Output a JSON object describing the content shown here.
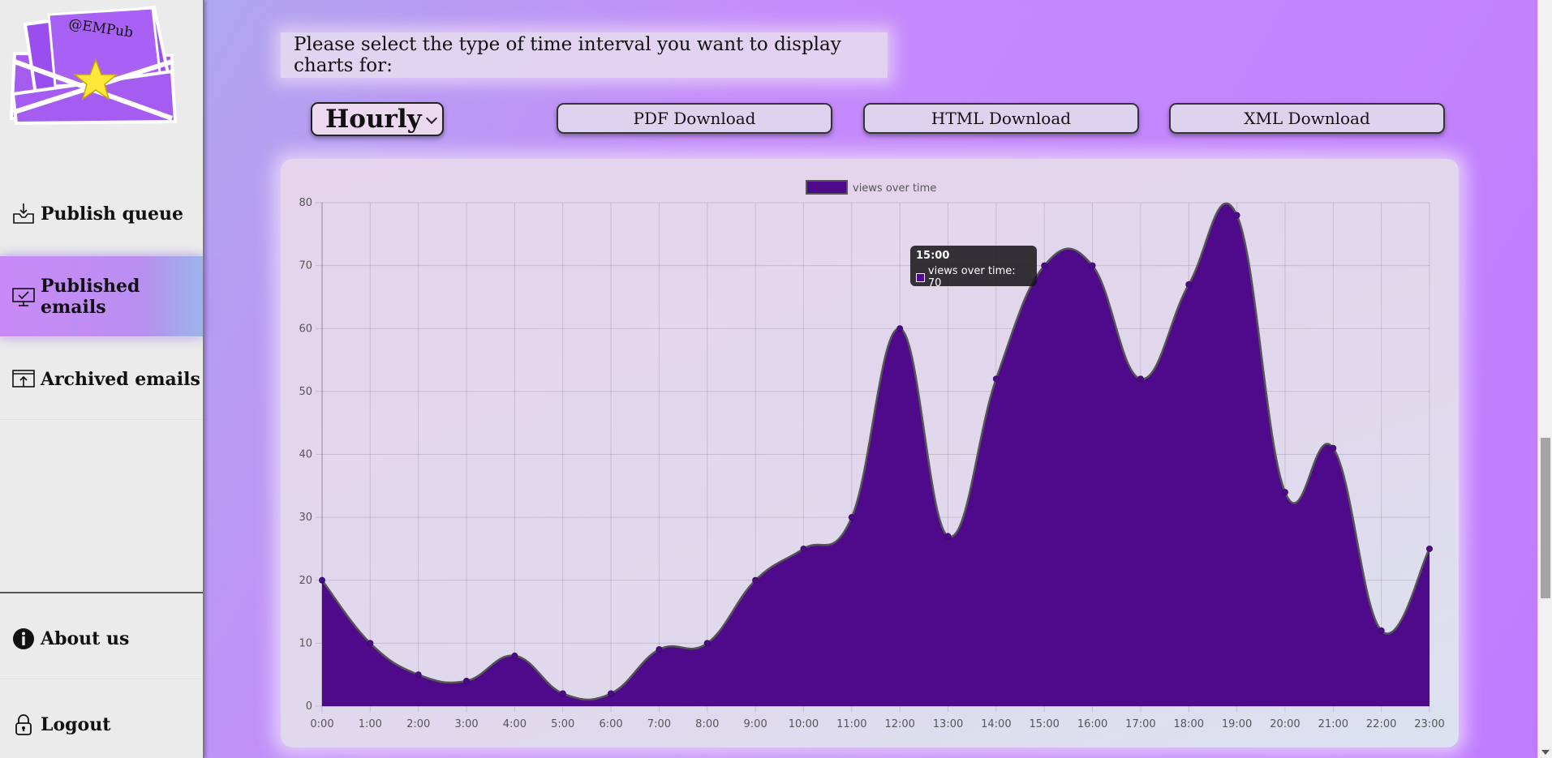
{
  "sidebar": {
    "logo_text": "@EMPub",
    "nav": [
      {
        "label": "Publish queue",
        "icon": "inbox-download-icon"
      },
      {
        "label": "Published emails",
        "icon": "monitor-check-icon",
        "active": true
      },
      {
        "label": "Archived emails",
        "icon": "window-upload-icon"
      }
    ],
    "bottom": [
      {
        "label": "About us",
        "icon": "info-icon"
      },
      {
        "label": "Logout",
        "icon": "lock-icon"
      }
    ]
  },
  "main": {
    "prompt": "Please select the type of time interval you want to display charts for:",
    "interval_select": {
      "value": "Hourly"
    },
    "buttons": {
      "pdf": "PDF Download",
      "html": "HTML Download",
      "xml": "XML Download"
    }
  },
  "colors": {
    "area_fill": "#4e0a8a",
    "line": "#555555",
    "active_nav": "#c98af8"
  },
  "tooltip": {
    "title": "15:00",
    "body": "views over time: 70"
  },
  "chart_data": {
    "type": "area",
    "legend": {
      "label": "views over time",
      "position": "top"
    },
    "categories": [
      "0:00",
      "1:00",
      "2:00",
      "3:00",
      "4:00",
      "5:00",
      "6:00",
      "7:00",
      "8:00",
      "9:00",
      "10:00",
      "11:00",
      "12:00",
      "13:00",
      "14:00",
      "15:00",
      "16:00",
      "17:00",
      "18:00",
      "19:00",
      "20:00",
      "21:00",
      "22:00",
      "23:00"
    ],
    "series": [
      {
        "name": "views over time",
        "values": [
          20,
          10,
          5,
          4,
          8,
          2,
          2,
          9,
          10,
          20,
          25,
          30,
          60,
          27,
          52,
          70,
          70,
          52,
          67,
          78,
          34,
          41,
          12,
          25
        ]
      }
    ],
    "ylim": [
      0,
      80
    ],
    "yticks": [
      0,
      10,
      20,
      30,
      40,
      50,
      60,
      70,
      80
    ],
    "grid": true
  }
}
